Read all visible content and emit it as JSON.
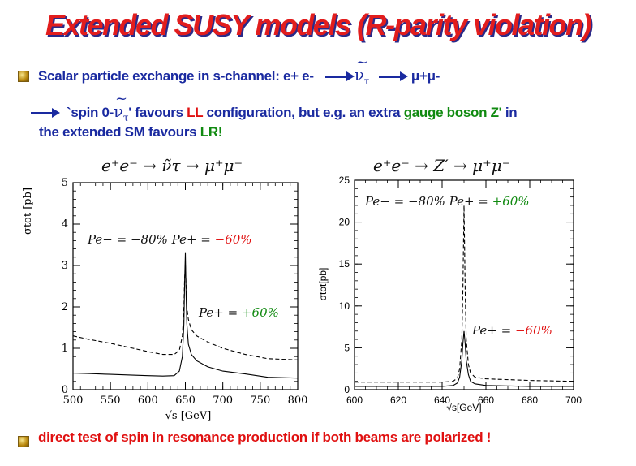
{
  "title": "Extended SUSY models (R-parity violation)",
  "bullet1": {
    "text": "Scalar particle exchange in s-channel: e+ e-",
    "nu": "ν",
    "nu_sub": "τ",
    "tilde": "~",
    "mumu": "μ+μ-"
  },
  "line2": {
    "prefix": "`spin 0-",
    "nu": "ν",
    "nu_sub": "τ",
    "tilde": "~",
    "quote": "'",
    "t1": " favours ",
    "ll": "LL",
    "t2": " configuration, but e.g. an extra ",
    "gauge": "gauge boson Z'",
    "t3": " in"
  },
  "line3": {
    "t1": "the extended SM favours ",
    "lr": "LR!"
  },
  "bullet2": {
    "text": "direct test of spin in resonance production if both beams are polarized !"
  },
  "chart_data": [
    {
      "type": "line",
      "title": "e⁺e⁻ → ν̃τ → μ⁺μ⁻",
      "xlabel": "√s [GeV]",
      "ylabel": "σtot [pb]",
      "xlim": [
        500,
        800
      ],
      "ylim": [
        0,
        5
      ],
      "xticks": [
        500,
        550,
        600,
        650,
        700,
        750,
        800
      ],
      "yticks": [
        0,
        1,
        2,
        3,
        4,
        5
      ],
      "annotations": [
        {
          "text": "Pe− = −80%",
          "extra": "Pe+ =",
          "value": "−60%",
          "color": "#e01010"
        },
        {
          "text": "",
          "extra": "Pe+ =",
          "value": "+60%",
          "color": "#108a10"
        }
      ],
      "series": [
        {
          "style": "solid",
          "x": [
            500,
            520,
            550,
            580,
            600,
            620,
            635,
            642,
            646,
            648,
            649,
            650,
            651,
            652,
            654,
            658,
            665,
            680,
            700,
            730,
            760,
            800
          ],
          "y": [
            0.4,
            0.39,
            0.37,
            0.35,
            0.34,
            0.33,
            0.34,
            0.45,
            0.8,
            1.6,
            2.6,
            3.3,
            2.3,
            1.6,
            1.1,
            0.85,
            0.7,
            0.55,
            0.45,
            0.38,
            0.3,
            0.28
          ]
        },
        {
          "style": "dashed",
          "x": [
            500,
            520,
            550,
            580,
            600,
            620,
            635,
            642,
            646,
            648,
            649,
            650,
            651,
            652,
            654,
            658,
            665,
            680,
            700,
            730,
            760,
            800
          ],
          "y": [
            1.3,
            1.22,
            1.12,
            1.0,
            0.92,
            0.85,
            0.85,
            0.95,
            1.3,
            2.0,
            2.7,
            3.0,
            2.5,
            2.0,
            1.7,
            1.45,
            1.3,
            1.15,
            1.0,
            0.85,
            0.75,
            0.72
          ]
        }
      ]
    },
    {
      "type": "line",
      "title": "e⁺e⁻ → Z′ → μ⁺μ⁻",
      "xlabel": "√s[GeV]",
      "ylabel": "σtot[pb]",
      "xlim": [
        600,
        700
      ],
      "ylim": [
        0,
        25
      ],
      "xticks": [
        600,
        620,
        640,
        660,
        680,
        700
      ],
      "yticks": [
        0,
        5,
        10,
        15,
        20,
        25
      ],
      "annotations": [
        {
          "text": "Pe− = −80%",
          "extra": "Pe+ =",
          "value": "+60%",
          "color": "#108a10"
        },
        {
          "text": "",
          "extra": "Pe+ =",
          "value": "−60%",
          "color": "#e01010"
        }
      ],
      "series": [
        {
          "style": "dashed",
          "x": [
            600,
            620,
            640,
            645,
            647,
            648,
            649,
            649.5,
            650,
            650.5,
            651,
            652,
            653,
            655,
            660,
            680,
            700
          ],
          "y": [
            0.9,
            0.9,
            0.9,
            1.0,
            1.4,
            2.5,
            6.0,
            12.0,
            22.0,
            12.0,
            6.0,
            3.0,
            2.0,
            1.5,
            1.3,
            1.1,
            1.0
          ]
        },
        {
          "style": "solid",
          "x": [
            600,
            620,
            640,
            645,
            647,
            648,
            649,
            649.5,
            650,
            650.5,
            651,
            652,
            653,
            655,
            660,
            680,
            700
          ],
          "y": [
            0.4,
            0.4,
            0.4,
            0.5,
            0.8,
            1.5,
            3.5,
            5.5,
            7.0,
            5.5,
            3.5,
            1.8,
            1.0,
            0.7,
            0.5,
            0.4,
            0.4
          ]
        }
      ]
    }
  ]
}
